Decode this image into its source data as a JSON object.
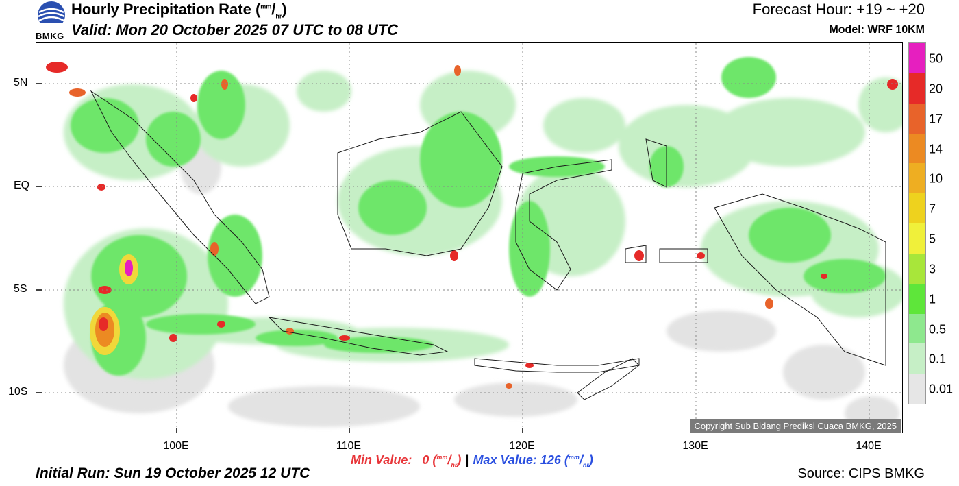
{
  "header": {
    "title": "Hourly Precipitation Rate (mm/hr)",
    "valid": "Valid: Mon 20 October 2025 07 UTC to 08 UTC",
    "forecast_hour": "Forecast Hour: +19 ~ +20",
    "model": "Model: WRF 10KM",
    "logo_text": "BMKG"
  },
  "map": {
    "lat_labels": [
      "5N",
      "EQ",
      "5S",
      "10S"
    ],
    "lon_labels": [
      "100E",
      "110E",
      "120E",
      "130E",
      "140E"
    ],
    "copyright": "Copyright Sub Bidang Prediksi Cuaca BMKG, 2025"
  },
  "colorbar": {
    "labels": [
      "50",
      "20",
      "17",
      "14",
      "10",
      "7",
      "5",
      "3",
      "1",
      "0.5",
      "0.1",
      "0.01"
    ],
    "colors": [
      "#e61fbf",
      "#e62a28",
      "#e8632a",
      "#ec8a22",
      "#eeae22",
      "#eed21e",
      "#f0f03a",
      "#a8e63a",
      "#5ee63a",
      "#8ee88e",
      "#c6efc6",
      "#e6e6e6"
    ]
  },
  "footer": {
    "min_label": "Min Value:",
    "min_value": "0",
    "max_label": "Max Value:",
    "max_value": "126",
    "separator": "|",
    "unit": "(mm/hr)",
    "initial_run": "Initial Run: Sun 19 October 2025 12 UTC",
    "source": "Source: CIPS BMKG"
  }
}
